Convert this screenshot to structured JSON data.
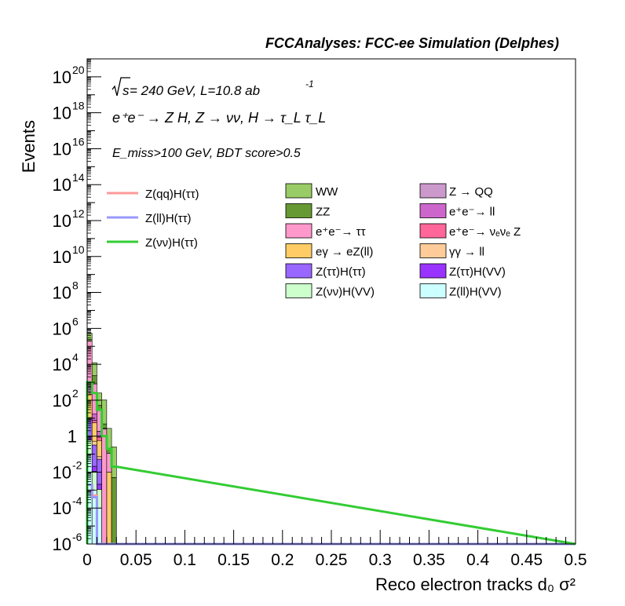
{
  "header": {
    "title": "FCCAnalyses: FCC-ee Simulation (Delphes)"
  },
  "annotations": {
    "sqrt_s": "s",
    "energy_lumi": " = 240 GeV, L=10.8 ab",
    "lumi_exp": "-1",
    "process": "e⁺e⁻ → Z H, Z → νν, H → τ_L τ_L",
    "cuts": "E_miss>100 GeV, BDT score>0.5"
  },
  "chart_data": {
    "type": "bar",
    "xlabel": "Reco electron tracks d₀ σ²",
    "ylabel": "Events",
    "xlim": [
      0,
      0.5
    ],
    "ylim": [
      1e-06,
      1e+21
    ],
    "log_y": true,
    "bin_width": 0.005,
    "x_ticks": [
      "0",
      "0.05",
      "0.1",
      "0.15",
      "0.2",
      "0.25",
      "0.3",
      "0.35",
      "0.4",
      "0.45",
      "0.5"
    ],
    "y_ticks": [
      {
        "base": "10",
        "exp": "-6",
        "value": 1e-06
      },
      {
        "base": "10",
        "exp": "-4",
        "value": 0.0001
      },
      {
        "base": "10",
        "exp": "-2",
        "value": 0.01
      },
      {
        "base": "1",
        "exp": "",
        "value": 1
      },
      {
        "base": "10",
        "exp": "2",
        "value": 100.0
      },
      {
        "base": "10",
        "exp": "4",
        "value": 10000.0
      },
      {
        "base": "10",
        "exp": "6",
        "value": 1000000.0
      },
      {
        "base": "10",
        "exp": "8",
        "value": 100000000.0
      },
      {
        "base": "10",
        "exp": "10",
        "value": 10000000000.0
      },
      {
        "base": "10",
        "exp": "12",
        "value": 1000000000000.0
      },
      {
        "base": "10",
        "exp": "14",
        "value": 100000000000000.0
      },
      {
        "base": "10",
        "exp": "16",
        "value": 1e+16
      },
      {
        "base": "10",
        "exp": "18",
        "value": 1e+18
      },
      {
        "base": "10",
        "exp": "20",
        "value": 1e+20
      }
    ],
    "stacked_backgrounds": [
      {
        "name": "Z(ℓℓ)H(VV)",
        "color": "#ccffff",
        "values": [
          0.1,
          0.001,
          0.0001,
          0,
          0,
          0
        ]
      },
      {
        "name": "Z(νν)H(VV)",
        "color": "#ccffcc",
        "values": [
          0.5,
          0.01,
          0.001,
          0,
          0,
          0
        ]
      },
      {
        "name": "Z(ττ)H(VV)",
        "color": "#9933ff",
        "values": [
          0.3,
          0.01,
          0.001,
          0,
          0,
          0
        ]
      },
      {
        "name": "Z(ττ)H(ττ)",
        "color": "#9966ff",
        "values": [
          8,
          0.3,
          0.05,
          0,
          0,
          0
        ]
      },
      {
        "name": "γγ → ℓℓ",
        "color": "#ffcc99",
        "values": [
          2,
          0.2,
          0.02,
          0,
          0,
          0
        ]
      },
      {
        "name": "eγ → eZ(ℓℓ)",
        "color": "#ffcc66",
        "values": [
          200,
          5,
          0.5,
          0,
          0.01,
          0
        ]
      },
      {
        "name": "e⁺e⁻→ νₑνₑ Z",
        "color": "#ff6699",
        "values": [
          50,
          2,
          0.3,
          0,
          0,
          0
        ]
      },
      {
        "name": "e⁺e⁻→ ℓℓ",
        "color": "#cc66cc",
        "values": [
          300,
          10,
          1,
          0,
          0,
          0
        ]
      },
      {
        "name": "e⁺e⁻→ ττ",
        "color": "#ff99cc",
        "values": [
          200000.0,
          800,
          25,
          2.5,
          0.1,
          0
        ]
      },
      {
        "name": "Z → QQ",
        "color": "#cc99cc",
        "values": [
          100,
          5,
          1,
          0.3,
          0,
          0
        ]
      },
      {
        "name": "ZZ",
        "color": "#669933",
        "values": [
          40000.0,
          1500,
          25,
          2,
          0.1,
          0.005
        ]
      },
      {
        "name": "WW",
        "color": "#99cc66",
        "values": [
          300000.0,
          10000,
          200,
          100,
          2.5,
          0.25
        ]
      }
    ],
    "signals": [
      {
        "name": "Z(qq)H(ττ)",
        "color": "#ff9999",
        "values": [
          0.002,
          0.0005,
          0,
          0,
          0,
          0
        ]
      },
      {
        "name": "Z(ℓℓ)H(ττ)",
        "color": "#9999ff",
        "values": [
          0.002,
          0.0004,
          0,
          0,
          0,
          0
        ]
      },
      {
        "name": "Z(νν)H(ττ)",
        "color": "#33cc33",
        "values": [
          1000,
          250,
          30,
          1,
          0.2,
          0.02
        ]
      }
    ]
  },
  "legend": {
    "signals": [
      {
        "label": "Z(qq)H(ττ)",
        "color": "#ff9999"
      },
      {
        "label": "Z(ll)H(ττ)",
        "color": "#9999ff"
      },
      {
        "label": "Z(νν)H(ττ)",
        "color": "#33cc33"
      }
    ],
    "col1": [
      {
        "label": "WW",
        "color": "#99cc66"
      },
      {
        "label": "ZZ",
        "color": "#669933"
      },
      {
        "label": "e⁺e⁻→ ττ",
        "color": "#ff99cc"
      },
      {
        "label": "eγ → eZ(ll)",
        "color": "#ffcc66"
      },
      {
        "label": "Z(ττ)H(ττ)",
        "color": "#9966ff"
      },
      {
        "label": "Z(νν)H(VV)",
        "color": "#ccffcc"
      }
    ],
    "col2": [
      {
        "label": "Z → QQ",
        "color": "#cc99cc"
      },
      {
        "label": "e⁺e⁻→ ll",
        "color": "#cc66cc"
      },
      {
        "label": "e⁺e⁻→ νₑνₑ Z",
        "color": "#ff6699"
      },
      {
        "label": "γγ → ll",
        "color": "#ffcc99"
      },
      {
        "label": "Z(ττ)H(VV)",
        "color": "#9933ff"
      },
      {
        "label": "Z(ll)H(VV)",
        "color": "#ccffff"
      }
    ]
  }
}
